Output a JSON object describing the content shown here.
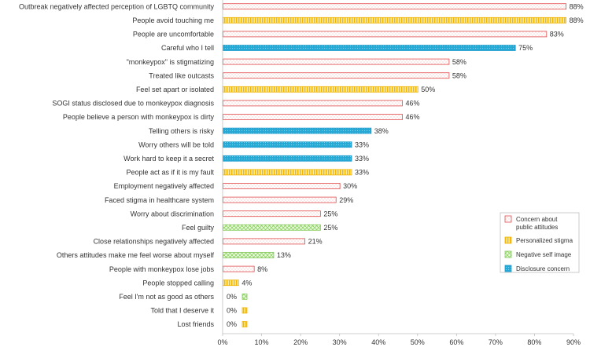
{
  "chart_data": {
    "type": "bar",
    "orientation": "horizontal",
    "title": "",
    "xlabel": "",
    "ylabel": "",
    "xlim": [
      0,
      90
    ],
    "x_ticks": [
      "0%",
      "10%",
      "20%",
      "30%",
      "40%",
      "50%",
      "60%",
      "70%",
      "80%",
      "90%"
    ],
    "grid": false,
    "legend_position": "right",
    "legend": [
      {
        "key": "concern",
        "label_lines": [
          "Concern about",
          "public attitudes"
        ],
        "color": "#e24b4b"
      },
      {
        "key": "personalized",
        "label_lines": [
          "Personalized stigma"
        ],
        "color": "#f5c518"
      },
      {
        "key": "negative",
        "label_lines": [
          "Negative self image"
        ],
        "color": "#8cd35f"
      },
      {
        "key": "disclosure",
        "label_lines": [
          "Disclosure concern"
        ],
        "color": "#27a9d6"
      }
    ],
    "bars": [
      {
        "label": "Outbreak negatively affected perception of LGBTQ community",
        "value": 88,
        "value_label": "88%",
        "category": "concern"
      },
      {
        "label": "People avoid touching me",
        "value": 88,
        "value_label": "88%",
        "category": "personalized"
      },
      {
        "label": "People are uncomfortable",
        "value": 83,
        "value_label": "83%",
        "category": "concern"
      },
      {
        "label": "Careful who I tell",
        "value": 75,
        "value_label": "75%",
        "category": "disclosure"
      },
      {
        "label": "\"monkeypox\" is stigmatizing",
        "value": 58,
        "value_label": "58%",
        "category": "concern"
      },
      {
        "label": "Treated like outcasts",
        "value": 58,
        "value_label": "58%",
        "category": "concern"
      },
      {
        "label": "Feel set apart or isolated",
        "value": 50,
        "value_label": "50%",
        "category": "personalized"
      },
      {
        "label": "SOGI status disclosed due to monkeypox diagnosis",
        "value": 46,
        "value_label": "46%",
        "category": "concern"
      },
      {
        "label": "People believe a person with monkeypox is dirty",
        "value": 46,
        "value_label": "46%",
        "category": "concern"
      },
      {
        "label": "Telling others is risky",
        "value": 38,
        "value_label": "38%",
        "category": "disclosure"
      },
      {
        "label": "Worry others will be told",
        "value": 33,
        "value_label": "33%",
        "category": "disclosure"
      },
      {
        "label": "Work hard to keep it a secret",
        "value": 33,
        "value_label": "33%",
        "category": "disclosure"
      },
      {
        "label": "People act as if it is my fault",
        "value": 33,
        "value_label": "33%",
        "category": "personalized"
      },
      {
        "label": "Employment negatively affected",
        "value": 30,
        "value_label": "30%",
        "category": "concern"
      },
      {
        "label": "Faced stigma in healthcare system",
        "value": 29,
        "value_label": "29%",
        "category": "concern"
      },
      {
        "label": "Worry about discrimination",
        "value": 25,
        "value_label": "25%",
        "category": "concern"
      },
      {
        "label": "Feel guilty",
        "value": 25,
        "value_label": "25%",
        "category": "negative"
      },
      {
        "label": "Close relationships negatively affected",
        "value": 21,
        "value_label": "21%",
        "category": "concern"
      },
      {
        "label": "Others attitudes make me feel worse about myself",
        "value": 13,
        "value_label": "13%",
        "category": "negative"
      },
      {
        "label": "People with monkeypox lose jobs",
        "value": 8,
        "value_label": "8%",
        "category": "concern"
      },
      {
        "label": "People stopped calling",
        "value": 4,
        "value_label": "4%",
        "category": "personalized"
      },
      {
        "label": "Feel I'm not as good as others",
        "value": 0,
        "value_label": "0%",
        "category": "negative"
      },
      {
        "label": "Told that I deserve it",
        "value": 0,
        "value_label": "0%",
        "category": "personalized"
      },
      {
        "label": "Lost friends",
        "value": 0,
        "value_label": "0%",
        "category": "personalized"
      }
    ]
  }
}
